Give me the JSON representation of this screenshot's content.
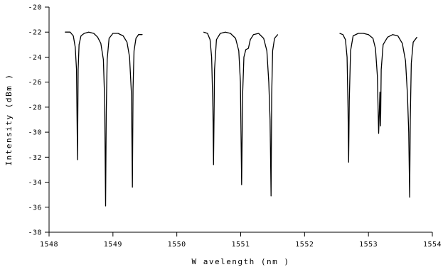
{
  "chart_data": {
    "type": "line",
    "title": "",
    "xlabel": "W avelength (nm )",
    "ylabel": "Intensity (dBm )",
    "xlim": [
      1548,
      1554
    ],
    "ylim": [
      -38,
      -20
    ],
    "x_ticks": [
      1548,
      1549,
      1550,
      1551,
      1552,
      1553,
      1554
    ],
    "y_ticks": [
      -20,
      -22,
      -24,
      -26,
      -28,
      -30,
      -32,
      -34,
      -36,
      -38
    ],
    "grid": false,
    "legend": "none",
    "line_color": "#000000",
    "series": [
      {
        "x": [
          1548.25,
          1548.33,
          1548.38,
          1548.41,
          1548.43,
          1548.445,
          1548.455,
          1548.47,
          1548.5,
          1548.55,
          1548.62,
          1548.7,
          1548.76,
          1548.81,
          1548.85,
          1548.87,
          1548.885,
          1548.895,
          1548.91,
          1548.94,
          1549.0,
          1549.08,
          1549.16,
          1549.22,
          1549.26,
          1549.29,
          1549.305,
          1549.315,
          1549.33,
          1549.36,
          1549.4,
          1549.46
        ],
        "y": [
          -22.0,
          -22.0,
          -22.3,
          -23.2,
          -25.0,
          -32.2,
          -25.0,
          -23.0,
          -22.3,
          -22.1,
          -22.0,
          -22.1,
          -22.4,
          -22.9,
          -24.2,
          -27.5,
          -35.9,
          -28.5,
          -24.2,
          -22.5,
          -22.1,
          -22.1,
          -22.3,
          -22.8,
          -24.0,
          -27.0,
          -34.4,
          -26.5,
          -23.5,
          -22.5,
          -22.2,
          -22.2
        ]
      },
      {
        "x": [
          1550.42,
          1550.48,
          1550.52,
          1550.545,
          1550.565,
          1550.575,
          1550.59,
          1550.62,
          1550.68,
          1550.76,
          1550.84,
          1550.92,
          1550.97,
          1550.995,
          1551.015,
          1551.03,
          1551.05,
          1551.08,
          1551.12,
          1551.15,
          1551.2,
          1551.28,
          1551.36,
          1551.41,
          1551.44,
          1551.46,
          1551.475,
          1551.485,
          1551.5,
          1551.53,
          1551.58
        ],
        "y": [
          -22.0,
          -22.1,
          -22.6,
          -24.0,
          -28.0,
          -32.6,
          -25.0,
          -22.6,
          -22.1,
          -22.0,
          -22.1,
          -22.5,
          -23.5,
          -26.0,
          -34.2,
          -27.0,
          -24.0,
          -23.4,
          -23.3,
          -22.6,
          -22.2,
          -22.1,
          -22.5,
          -23.5,
          -26.0,
          -29.0,
          -35.1,
          -27.0,
          -23.5,
          -22.5,
          -22.2
        ]
      },
      {
        "x": [
          1552.55,
          1552.6,
          1552.64,
          1552.665,
          1552.68,
          1552.69,
          1552.7,
          1552.72,
          1552.76,
          1552.84,
          1552.92,
          1553.0,
          1553.07,
          1553.11,
          1553.14,
          1553.16,
          1553.17,
          1553.18,
          1553.19,
          1553.2,
          1553.23,
          1553.3,
          1553.38,
          1553.46,
          1553.53,
          1553.58,
          1553.61,
          1553.63,
          1553.645,
          1553.655,
          1553.67,
          1553.7,
          1553.76
        ],
        "y": [
          -22.1,
          -22.2,
          -22.6,
          -24.0,
          -28.0,
          -32.4,
          -27.5,
          -23.5,
          -22.3,
          -22.1,
          -22.1,
          -22.2,
          -22.5,
          -23.3,
          -25.5,
          -30.1,
          -28.5,
          -26.8,
          -29.5,
          -25.0,
          -23.0,
          -22.4,
          -22.2,
          -22.3,
          -22.9,
          -24.3,
          -27.0,
          -30.0,
          -35.2,
          -29.0,
          -24.5,
          -22.8,
          -22.4
        ]
      }
    ]
  }
}
